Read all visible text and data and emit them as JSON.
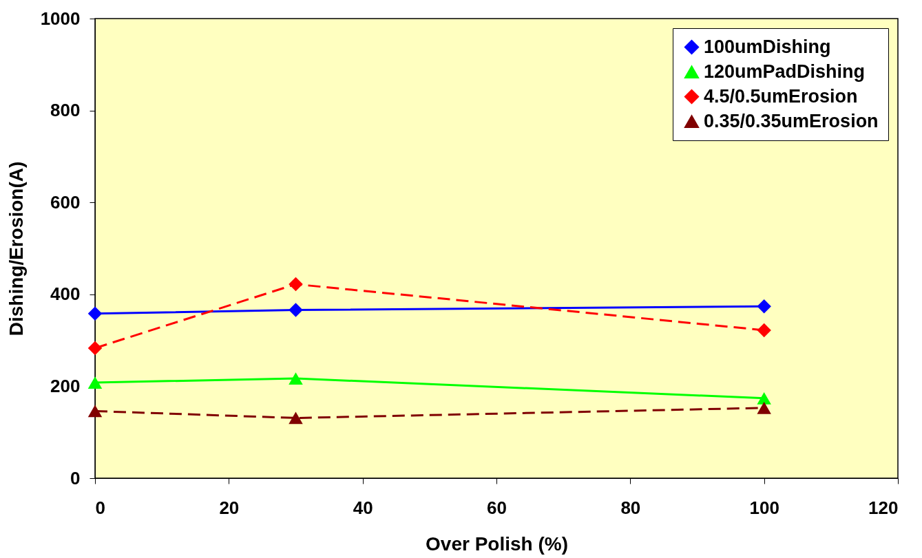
{
  "chart_data": {
    "type": "line",
    "xlabel": "Over Polish (%)",
    "ylabel": "Dishing/Erosion(A)",
    "x": [
      0,
      30,
      100
    ],
    "series": [
      {
        "name": "100umDishing",
        "color": "#0000ff",
        "marker": "diamond",
        "line_style": "solid",
        "values": [
          358,
          366,
          374
        ]
      },
      {
        "name": "120umPadDishing",
        "color": "#00ff00",
        "marker": "triangle",
        "line_style": "solid",
        "values": [
          208,
          217,
          174
        ]
      },
      {
        "name": "4.5/0.5umErosion",
        "color": "#ff0000",
        "marker": "diamond",
        "line_style": "dashed",
        "values": [
          283,
          422,
          322
        ]
      },
      {
        "name": "0.35/0.35umErosion",
        "color": "#800000",
        "marker": "triangle",
        "line_style": "dashed",
        "values": [
          146,
          131,
          153
        ]
      }
    ],
    "xlim": [
      0,
      120
    ],
    "xticks": [
      0,
      20,
      40,
      60,
      80,
      100,
      120
    ],
    "ylim": [
      0,
      1000
    ],
    "yticks": [
      0,
      200,
      400,
      600,
      800,
      1000
    ],
    "grid": false,
    "legend": "top right"
  }
}
